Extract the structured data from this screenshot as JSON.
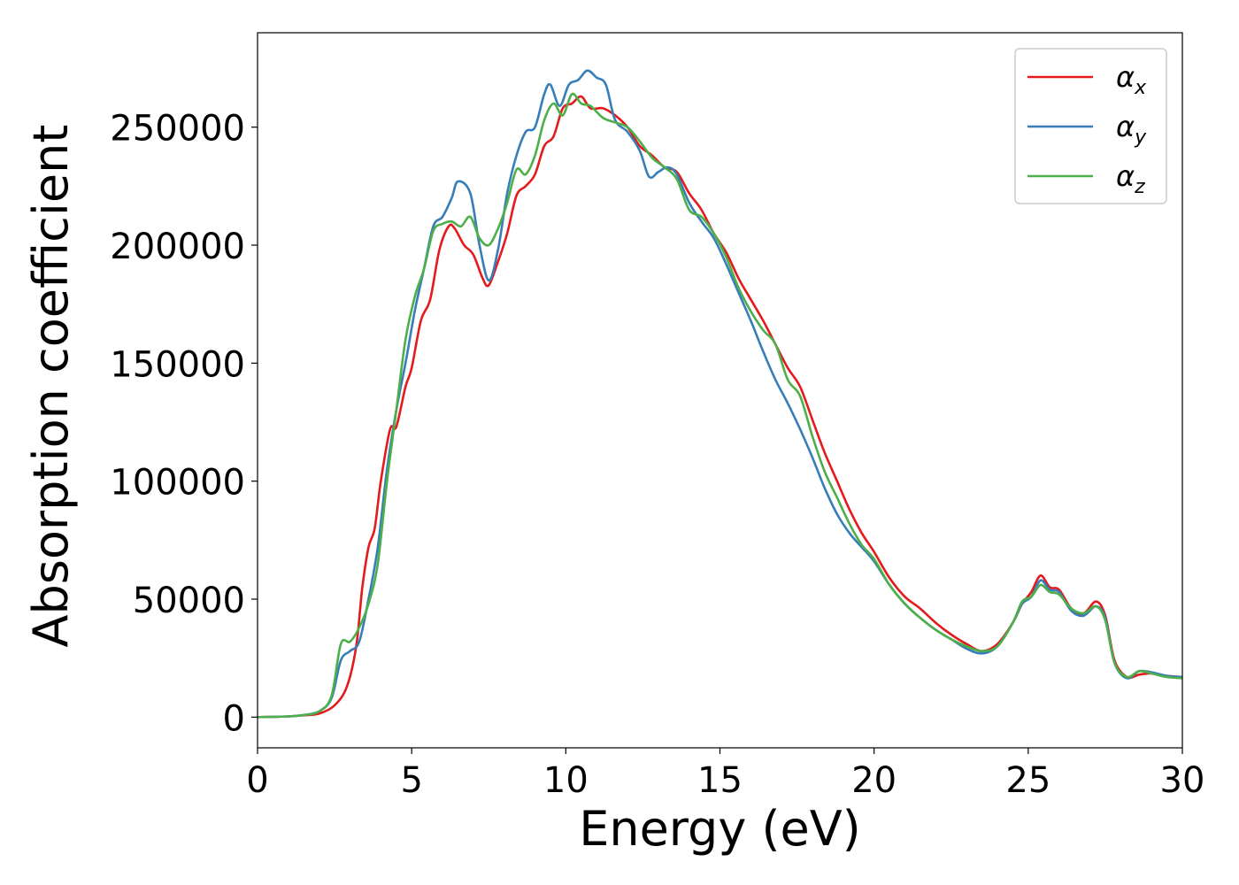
{
  "chart_data": {
    "type": "line",
    "title": "",
    "xlabel": "Energy (eV)",
    "ylabel": "Absorption coefficient",
    "xlim": [
      0,
      30
    ],
    "ylim": [
      -13000,
      290000
    ],
    "xticks": [
      0,
      5,
      10,
      15,
      20,
      25,
      30
    ],
    "xtick_labels": [
      "0",
      "5",
      "10",
      "15",
      "20",
      "25",
      "30"
    ],
    "yticks": [
      0,
      50000,
      100000,
      150000,
      200000,
      250000
    ],
    "ytick_labels": [
      "0",
      "50000",
      "100000",
      "150000",
      "200000",
      "250000"
    ],
    "grid": false,
    "legend_position": "top-right",
    "series": [
      {
        "name": "α",
        "subscript": "x",
        "color": "#e41a1c",
        "points": [
          [
            0,
            0
          ],
          [
            1,
            300
          ],
          [
            1.5,
            800
          ],
          [
            2,
            1500
          ],
          [
            2.5,
            5000
          ],
          [
            2.9,
            13000
          ],
          [
            3.2,
            30000
          ],
          [
            3.4,
            55000
          ],
          [
            3.6,
            72000
          ],
          [
            3.8,
            80000
          ],
          [
            4.0,
            100000
          ],
          [
            4.3,
            122000
          ],
          [
            4.5,
            123000
          ],
          [
            4.8,
            140000
          ],
          [
            5.0,
            148000
          ],
          [
            5.3,
            168000
          ],
          [
            5.6,
            177000
          ],
          [
            5.9,
            198000
          ],
          [
            6.2,
            208000
          ],
          [
            6.4,
            207000
          ],
          [
            6.7,
            200000
          ],
          [
            7.0,
            196000
          ],
          [
            7.3,
            186000
          ],
          [
            7.5,
            183000
          ],
          [
            7.8,
            193000
          ],
          [
            8.1,
            205000
          ],
          [
            8.4,
            221000
          ],
          [
            8.7,
            225000
          ],
          [
            9.0,
            230000
          ],
          [
            9.3,
            242000
          ],
          [
            9.6,
            246000
          ],
          [
            9.9,
            258000
          ],
          [
            10.2,
            260000
          ],
          [
            10.5,
            263000
          ],
          [
            10.8,
            258000
          ],
          [
            11.2,
            258000
          ],
          [
            11.6,
            255000
          ],
          [
            12.0,
            250000
          ],
          [
            12.4,
            242000
          ],
          [
            12.8,
            238000
          ],
          [
            13.2,
            233000
          ],
          [
            13.6,
            231000
          ],
          [
            14.0,
            222000
          ],
          [
            14.4,
            215000
          ],
          [
            14.8,
            205000
          ],
          [
            15.2,
            197000
          ],
          [
            15.6,
            186000
          ],
          [
            16.0,
            177000
          ],
          [
            16.4,
            168000
          ],
          [
            16.8,
            158000
          ],
          [
            17.2,
            148000
          ],
          [
            17.6,
            140000
          ],
          [
            18.0,
            126000
          ],
          [
            18.4,
            112000
          ],
          [
            18.8,
            100000
          ],
          [
            19.2,
            88000
          ],
          [
            19.6,
            78000
          ],
          [
            20.0,
            70000
          ],
          [
            20.5,
            59000
          ],
          [
            21.0,
            51000
          ],
          [
            21.5,
            46000
          ],
          [
            22.0,
            40000
          ],
          [
            22.5,
            35000
          ],
          [
            23.0,
            31000
          ],
          [
            23.5,
            28000
          ],
          [
            24.0,
            31000
          ],
          [
            24.5,
            40000
          ],
          [
            24.8,
            48000
          ],
          [
            25.1,
            53000
          ],
          [
            25.4,
            60000
          ],
          [
            25.7,
            55000
          ],
          [
            26.0,
            54000
          ],
          [
            26.4,
            46000
          ],
          [
            26.8,
            44000
          ],
          [
            27.2,
            49000
          ],
          [
            27.5,
            43000
          ],
          [
            27.8,
            24000
          ],
          [
            28.2,
            17000
          ],
          [
            28.6,
            18000
          ],
          [
            29.0,
            18500
          ],
          [
            29.5,
            17500
          ],
          [
            30,
            17000
          ]
        ]
      },
      {
        "name": "α",
        "subscript": "y",
        "color": "#377eb8",
        "points": [
          [
            0,
            0
          ],
          [
            1,
            300
          ],
          [
            1.5,
            900
          ],
          [
            2,
            2500
          ],
          [
            2.4,
            8000
          ],
          [
            2.7,
            24000
          ],
          [
            3.0,
            28000
          ],
          [
            3.3,
            32000
          ],
          [
            3.6,
            50000
          ],
          [
            3.9,
            72000
          ],
          [
            4.2,
            105000
          ],
          [
            4.5,
            130000
          ],
          [
            4.8,
            150000
          ],
          [
            5.1,
            172000
          ],
          [
            5.4,
            190000
          ],
          [
            5.7,
            208000
          ],
          [
            6.0,
            212000
          ],
          [
            6.3,
            220000
          ],
          [
            6.5,
            227000
          ],
          [
            6.9,
            222000
          ],
          [
            7.2,
            200000
          ],
          [
            7.5,
            185000
          ],
          [
            7.8,
            198000
          ],
          [
            8.1,
            222000
          ],
          [
            8.4,
            238000
          ],
          [
            8.7,
            248000
          ],
          [
            9.0,
            250000
          ],
          [
            9.3,
            264000
          ],
          [
            9.5,
            268000
          ],
          [
            9.8,
            259000
          ],
          [
            10.1,
            268000
          ],
          [
            10.4,
            270000
          ],
          [
            10.7,
            274000
          ],
          [
            11.0,
            271000
          ],
          [
            11.3,
            268000
          ],
          [
            11.6,
            253000
          ],
          [
            12.0,
            248000
          ],
          [
            12.4,
            240000
          ],
          [
            12.7,
            229000
          ],
          [
            13.0,
            231000
          ],
          [
            13.3,
            233000
          ],
          [
            13.6,
            230000
          ],
          [
            14.0,
            218000
          ],
          [
            14.4,
            210000
          ],
          [
            14.8,
            203000
          ],
          [
            15.2,
            192000
          ],
          [
            15.6,
            180000
          ],
          [
            16.0,
            168000
          ],
          [
            16.4,
            155000
          ],
          [
            16.8,
            143000
          ],
          [
            17.2,
            133000
          ],
          [
            17.6,
            122000
          ],
          [
            18.0,
            110000
          ],
          [
            18.4,
            97000
          ],
          [
            18.8,
            86000
          ],
          [
            19.2,
            78000
          ],
          [
            19.6,
            72000
          ],
          [
            20.0,
            66000
          ],
          [
            20.5,
            56000
          ],
          [
            21.0,
            48000
          ],
          [
            21.5,
            42000
          ],
          [
            22.0,
            37000
          ],
          [
            22.5,
            33000
          ],
          [
            23.0,
            29000
          ],
          [
            23.5,
            27000
          ],
          [
            24.0,
            30000
          ],
          [
            24.5,
            40000
          ],
          [
            24.8,
            48000
          ],
          [
            25.1,
            51000
          ],
          [
            25.4,
            58000
          ],
          [
            25.7,
            54000
          ],
          [
            26.0,
            53000
          ],
          [
            26.4,
            45000
          ],
          [
            26.8,
            43000
          ],
          [
            27.2,
            47000
          ],
          [
            27.5,
            42000
          ],
          [
            27.8,
            23000
          ],
          [
            28.2,
            16500
          ],
          [
            28.6,
            19500
          ],
          [
            29.0,
            19000
          ],
          [
            29.5,
            17500
          ],
          [
            30,
            17000
          ]
        ]
      },
      {
        "name": "α",
        "subscript": "z",
        "color": "#4daf4a",
        "points": [
          [
            0,
            0
          ],
          [
            1,
            300
          ],
          [
            1.5,
            900
          ],
          [
            2,
            2500
          ],
          [
            2.4,
            9000
          ],
          [
            2.7,
            31000
          ],
          [
            3.0,
            32000
          ],
          [
            3.3,
            38000
          ],
          [
            3.6,
            48000
          ],
          [
            3.9,
            65000
          ],
          [
            4.2,
            100000
          ],
          [
            4.5,
            130000
          ],
          [
            4.8,
            160000
          ],
          [
            5.1,
            178000
          ],
          [
            5.4,
            190000
          ],
          [
            5.7,
            206000
          ],
          [
            6.0,
            209000
          ],
          [
            6.3,
            210000
          ],
          [
            6.6,
            208000
          ],
          [
            6.9,
            212000
          ],
          [
            7.2,
            203000
          ],
          [
            7.5,
            200000
          ],
          [
            7.8,
            207000
          ],
          [
            8.1,
            218000
          ],
          [
            8.4,
            232000
          ],
          [
            8.7,
            230000
          ],
          [
            9.0,
            238000
          ],
          [
            9.3,
            253000
          ],
          [
            9.6,
            260000
          ],
          [
            9.9,
            255000
          ],
          [
            10.2,
            264000
          ],
          [
            10.5,
            260000
          ],
          [
            10.8,
            259000
          ],
          [
            11.2,
            254000
          ],
          [
            11.6,
            252000
          ],
          [
            12.0,
            250000
          ],
          [
            12.4,
            244000
          ],
          [
            12.8,
            237000
          ],
          [
            13.2,
            233000
          ],
          [
            13.6,
            228000
          ],
          [
            14.0,
            215000
          ],
          [
            14.4,
            212000
          ],
          [
            14.8,
            205000
          ],
          [
            15.2,
            195000
          ],
          [
            15.6,
            182000
          ],
          [
            16.0,
            172000
          ],
          [
            16.4,
            164000
          ],
          [
            16.8,
            158000
          ],
          [
            17.2,
            143000
          ],
          [
            17.6,
            136000
          ],
          [
            18.0,
            119000
          ],
          [
            18.4,
            104000
          ],
          [
            18.8,
            93000
          ],
          [
            19.2,
            82000
          ],
          [
            19.6,
            73000
          ],
          [
            20.0,
            67000
          ],
          [
            20.5,
            56000
          ],
          [
            21.0,
            48000
          ],
          [
            21.5,
            42000
          ],
          [
            22.0,
            37000
          ],
          [
            22.5,
            33000
          ],
          [
            23.0,
            30000
          ],
          [
            23.5,
            28000
          ],
          [
            24.0,
            30000
          ],
          [
            24.5,
            40000
          ],
          [
            24.8,
            49000
          ],
          [
            25.1,
            51000
          ],
          [
            25.4,
            56000
          ],
          [
            25.7,
            53000
          ],
          [
            26.0,
            52000
          ],
          [
            26.4,
            46000
          ],
          [
            26.8,
            44000
          ],
          [
            27.2,
            47000
          ],
          [
            27.5,
            41000
          ],
          [
            27.8,
            23000
          ],
          [
            28.2,
            17000
          ],
          [
            28.6,
            19500
          ],
          [
            29.0,
            18500
          ],
          [
            29.5,
            17000
          ],
          [
            30,
            16500
          ]
        ]
      }
    ]
  }
}
